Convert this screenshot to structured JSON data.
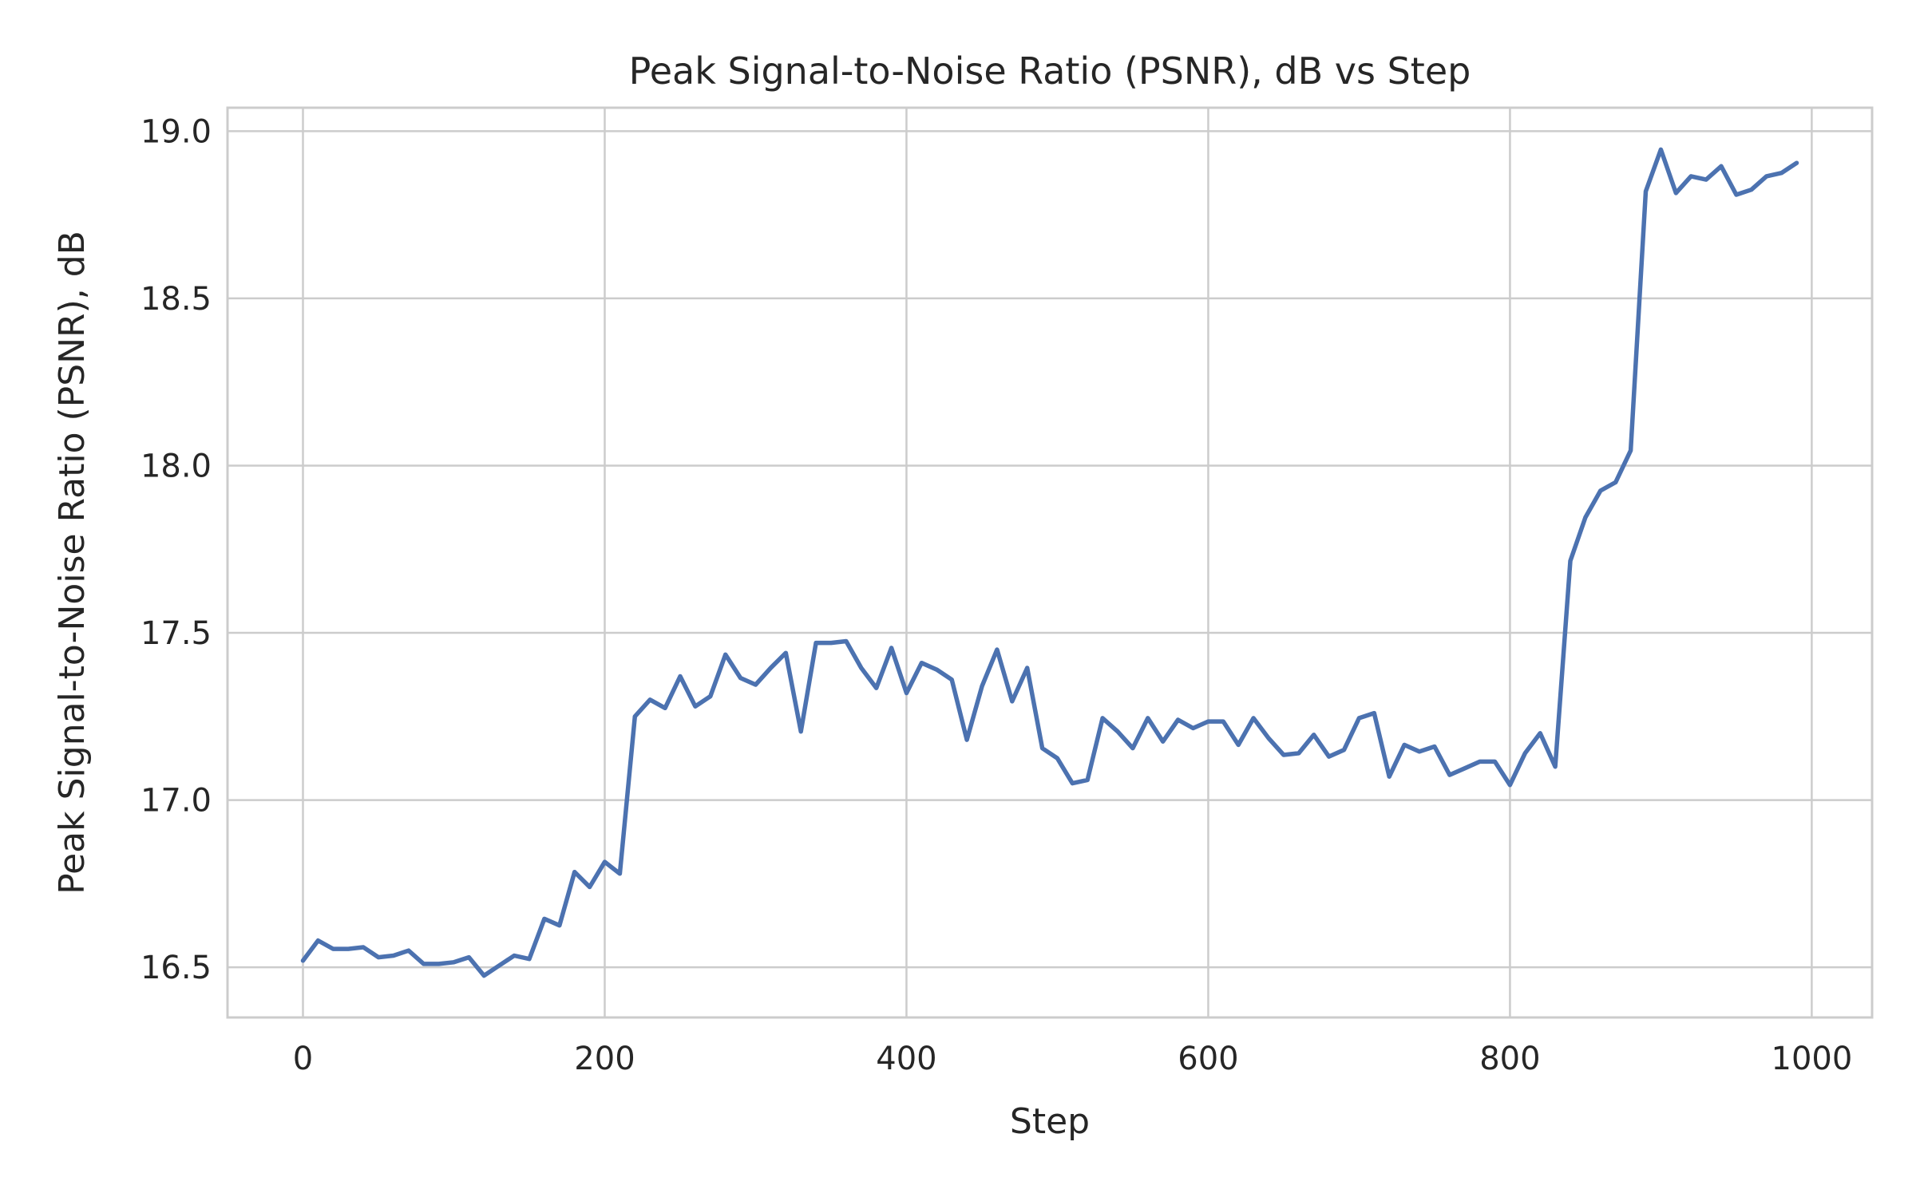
{
  "chart_data": {
    "type": "line",
    "title": "Peak Signal-to-Noise Ratio (PSNR), dB vs Step",
    "xlabel": "Step",
    "ylabel": "Peak Signal-to-Noise Ratio (PSNR), dB",
    "xlim": [
      -50,
      1040
    ],
    "ylim": [
      16.35,
      19.07
    ],
    "xticks": [
      0,
      200,
      400,
      600,
      800,
      1000
    ],
    "xtick_labels": [
      "0",
      "200",
      "400",
      "600",
      "800",
      "1000"
    ],
    "yticks": [
      16.5,
      17.0,
      17.5,
      18.0,
      18.5,
      19.0
    ],
    "ytick_labels": [
      "16.5",
      "17.0",
      "17.5",
      "18.0",
      "18.5",
      "19.0"
    ],
    "grid": true,
    "line_color": "#4c72b0",
    "series": [
      {
        "x": [
          0,
          10,
          20,
          30,
          40,
          50,
          60,
          70,
          80,
          90,
          100,
          110,
          120,
          130,
          140,
          150,
          160,
          170,
          180,
          190,
          200,
          210,
          220,
          230,
          240,
          250,
          260,
          270,
          280,
          290,
          300,
          310,
          320,
          330,
          340,
          350,
          360,
          370,
          380,
          390,
          400,
          410,
          420,
          430,
          440,
          450,
          460,
          470,
          480,
          490,
          500,
          510,
          520,
          530,
          540,
          550,
          560,
          570,
          580,
          590,
          600,
          610,
          620,
          630,
          640,
          650,
          660,
          670,
          680,
          690,
          700,
          710,
          720,
          730,
          740,
          750,
          760,
          770,
          780,
          790,
          800,
          810,
          820,
          830,
          840,
          850,
          860,
          870,
          880,
          890,
          900,
          910,
          920,
          930,
          940,
          950,
          960,
          970,
          980,
          990
        ],
        "y": [
          16.52,
          16.58,
          16.555,
          16.555,
          16.56,
          16.53,
          16.535,
          16.55,
          16.51,
          16.51,
          16.515,
          16.53,
          16.475,
          16.505,
          16.535,
          16.525,
          16.645,
          16.625,
          16.785,
          16.74,
          16.815,
          16.78,
          17.25,
          17.3,
          17.275,
          17.37,
          17.28,
          17.31,
          17.435,
          17.365,
          17.345,
          17.395,
          17.44,
          17.205,
          17.47,
          17.47,
          17.475,
          17.395,
          17.335,
          17.455,
          17.32,
          17.41,
          17.39,
          17.36,
          17.18,
          17.34,
          17.45,
          17.295,
          17.395,
          17.155,
          17.125,
          17.05,
          17.06,
          17.245,
          17.205,
          17.155,
          17.245,
          17.175,
          17.24,
          17.215,
          17.235,
          17.235,
          17.165,
          17.245,
          17.185,
          17.135,
          17.14,
          17.195,
          17.13,
          17.15,
          17.245,
          17.26,
          17.07,
          17.165,
          17.145,
          17.16,
          17.075,
          17.095,
          17.115,
          17.115,
          17.045,
          17.14,
          17.2,
          17.1,
          17.715,
          17.845,
          17.925,
          17.95,
          18.045,
          18.82,
          18.945,
          18.815,
          18.865,
          18.855,
          18.895,
          18.81,
          18.825,
          18.865,
          18.875,
          18.905
        ]
      }
    ]
  }
}
